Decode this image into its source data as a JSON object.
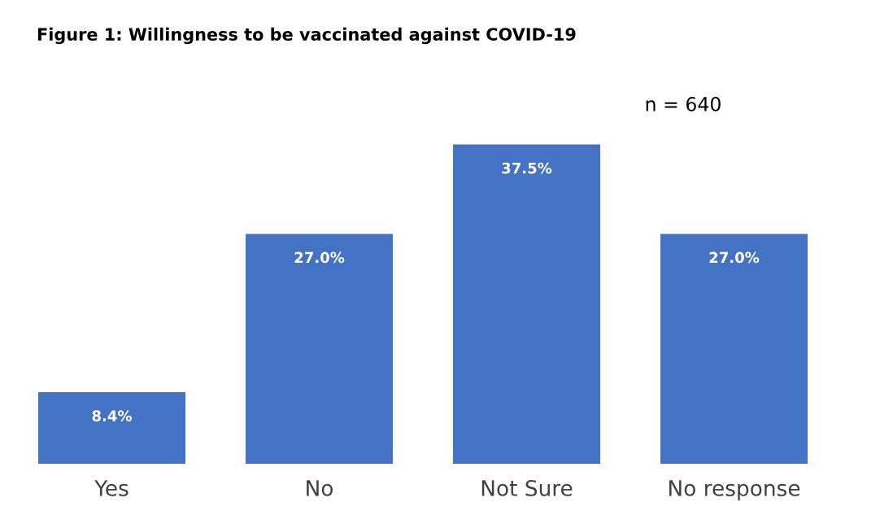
{
  "chart_data": {
    "type": "bar",
    "title": "Figure 1: Willingness to be vaccinated against COVID-19",
    "categories": [
      "Yes",
      "No",
      "Not Sure",
      "No response"
    ],
    "values": [
      8.4,
      27.0,
      37.5,
      27.0
    ],
    "value_labels": [
      "8.4%",
      "27.0%",
      "37.5%",
      "27.0%"
    ],
    "color": "#4472c4",
    "annotations": [
      "n = 640"
    ],
    "grid": false,
    "legend": false
  }
}
